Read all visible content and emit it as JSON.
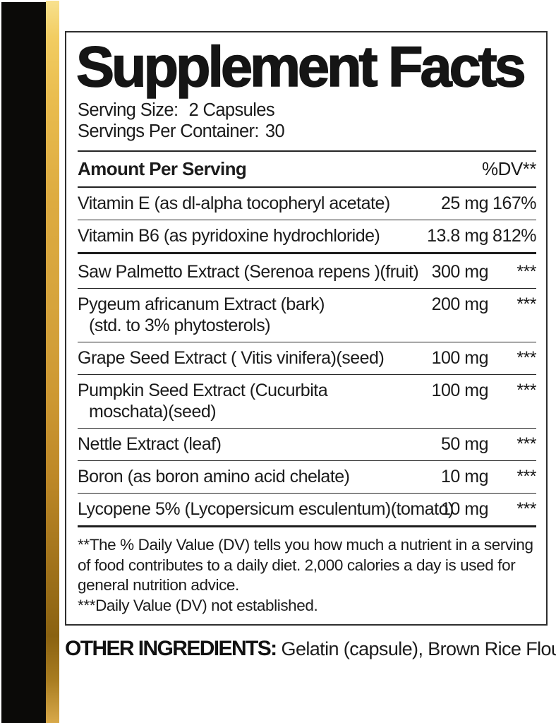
{
  "package": {
    "black_band_color": "#0b0a08",
    "gold_stripe_colors": [
      "#f8e18e",
      "#e9bc4e",
      "#d6a43c",
      "#8a6211",
      "#d8a94a"
    ]
  },
  "label": {
    "title": "Supplement Facts",
    "serving_size_label": "Serving Size:",
    "serving_size_value": "2 Capsules",
    "servings_per_container_label": "Servings Per Container:",
    "servings_per_container_value": "30",
    "amount_per_serving": "Amount Per Serving",
    "dv_header": "%DV**",
    "rows": [
      {
        "name": "Vitamin E (as dl-alpha tocopheryl acetate)",
        "amount": "25 mg",
        "dv": "167%"
      },
      {
        "name": "Vitamin B6 (as pyridoxine hydrochloride)",
        "amount": "13.8 mg",
        "dv": "812%"
      },
      {
        "name": "Saw Palmetto Extract (Serenoa repens )(fruit)",
        "amount": "300 mg",
        "dv": "***",
        "section_break_before": true
      },
      {
        "name": "Pygeum africanum Extract (bark)",
        "name2": "(std. to 3% phytosterols)",
        "amount": "200 mg",
        "dv": "***"
      },
      {
        "name": "Grape Seed Extract ( Vitis vinifera)(seed)",
        "amount": "100 mg",
        "dv": "***"
      },
      {
        "name": "Pumpkin Seed Extract (Cucurbita",
        "name2": "moschata)(seed)",
        "amount": "100 mg",
        "dv": "***"
      },
      {
        "name": "Nettle Extract (leaf)",
        "amount": "50 mg",
        "dv": "***"
      },
      {
        "name": "Boron (as boron amino acid chelate)",
        "amount": "10 mg",
        "dv": "***"
      },
      {
        "name": "Lycopene 5% (Lycopersicum esculentum)(tomato)",
        "amount": "10 mg",
        "dv": "***"
      }
    ],
    "footnotes": {
      "dv_note": "**The % Daily Value (DV) tells you how much a nutrient in a serving of food contributes to a daily diet. 2,000 calories a day is used for general nutrition advice.",
      "dv_not_established": "***Daily Value (DV) not established."
    }
  },
  "other_ingredients": {
    "label": "OTHER INGREDIENTS:",
    "value": "Gelatin (capsule), Brown Rice Flour."
  }
}
